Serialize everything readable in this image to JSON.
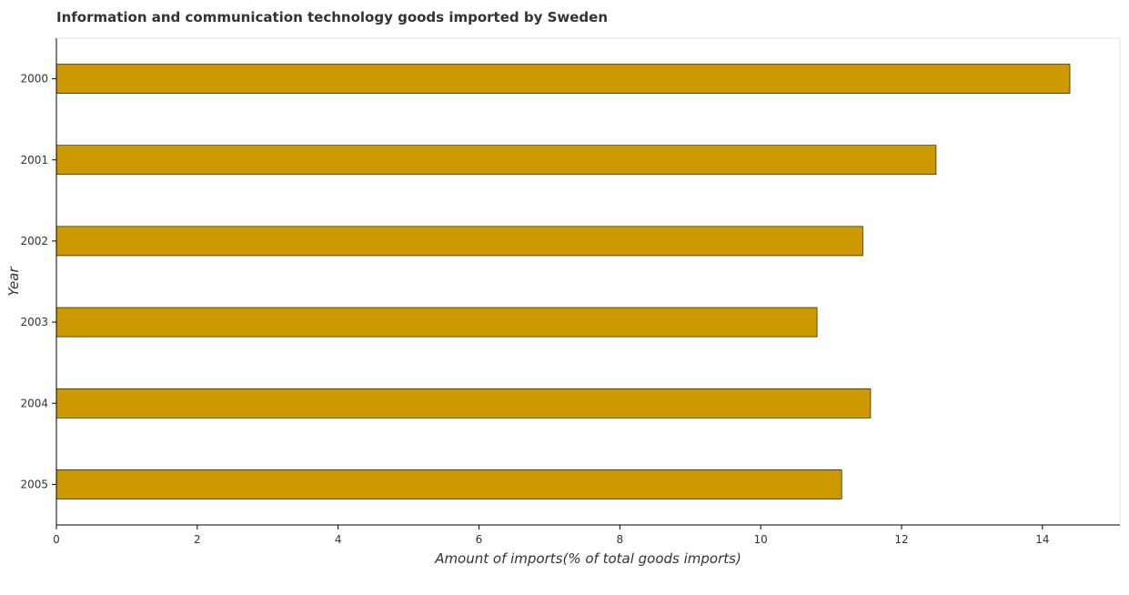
{
  "chart_data": {
    "type": "bar",
    "orientation": "horizontal",
    "title": "Information and communication technology goods imported by Sweden",
    "xlabel": "Amount of imports(% of total goods imports)",
    "ylabel": "Year",
    "categories": [
      "2000",
      "2001",
      "2002",
      "2003",
      "2004",
      "2005"
    ],
    "values": [
      14.39,
      12.49,
      11.45,
      10.8,
      11.56,
      11.15
    ],
    "xlim": [
      0,
      15.1
    ],
    "xticks": [
      "0",
      "2",
      "4",
      "6",
      "8",
      "10",
      "12",
      "14"
    ],
    "grid": false,
    "legend": "none",
    "colors": {
      "bar_fill": "#cc9900",
      "bar_stroke": "#000000",
      "axis": "#000000"
    }
  }
}
